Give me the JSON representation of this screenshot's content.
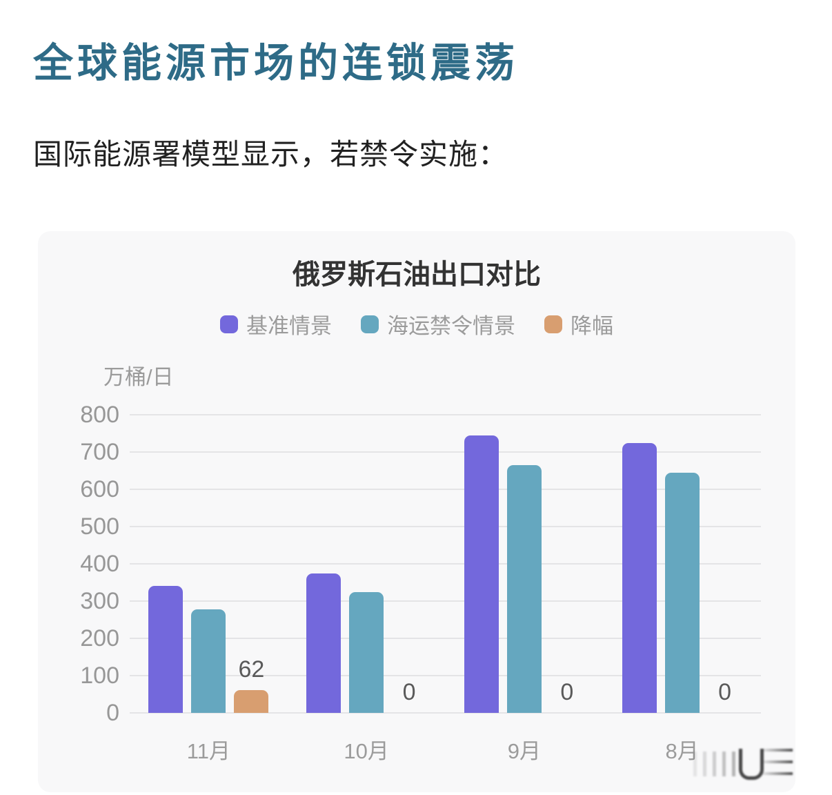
{
  "page": {
    "title": "全球能源市场的连锁震荡",
    "subtitle": "国际能源署模型显示，若禁令实施："
  },
  "chart_data": {
    "type": "bar",
    "title": "俄罗斯石油出口对比",
    "unit_label": "万桶/日",
    "xlabel": "",
    "ylabel": "万桶/日",
    "ylim": [
      0,
      800
    ],
    "ytick_step": 100,
    "yticks": [
      800,
      700,
      600,
      500,
      400,
      300,
      200,
      100,
      0
    ],
    "grid": true,
    "legend_position": "top",
    "categories": [
      "11月",
      "10月",
      "9月",
      "8月"
    ],
    "series": [
      {
        "name": "基准情景",
        "color": "#7368DC",
        "values": [
          340,
          375,
          745,
          725
        ],
        "show_value_labels": false
      },
      {
        "name": "海运禁令情景",
        "color": "#65A7BF",
        "values": [
          278,
          325,
          665,
          645
        ],
        "show_value_labels": false
      },
      {
        "name": "降幅",
        "color": "#D89E70",
        "values": [
          62,
          0,
          0,
          0
        ],
        "show_value_labels": true
      }
    ]
  },
  "colors": {
    "page_title": "#2E6B87",
    "body_text": "#212121",
    "chart_title": "#333333",
    "axis_text": "#9B9B9B",
    "value_label": "#5A5A5A",
    "gridline": "#E4E4E6",
    "card_bg": "#F8F8F9",
    "page_bg": "#FFFFFF"
  }
}
